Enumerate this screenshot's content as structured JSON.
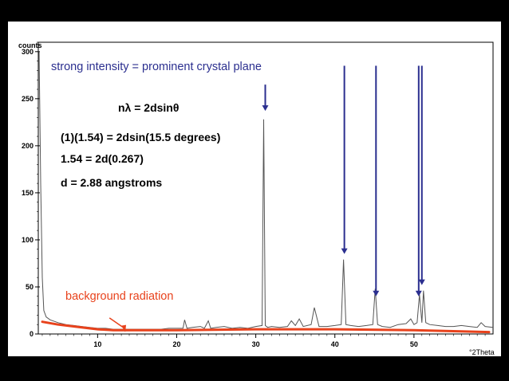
{
  "chart_data": {
    "type": "line",
    "ylabel": "counts",
    "xlabel": "°2Theta",
    "xlim": [
      2.5,
      60
    ],
    "ylim": [
      0,
      310
    ],
    "xticks": [
      10,
      20,
      30,
      40,
      50
    ],
    "yticks": [
      0,
      50,
      100,
      150,
      200,
      250,
      300
    ],
    "series": [
      {
        "x": [
          2.6,
          2.8,
          3.0,
          3.2,
          3.5,
          4,
          5,
          6,
          7,
          8,
          9,
          10,
          11,
          12,
          13,
          14,
          15,
          16,
          17,
          18,
          19,
          20,
          20.8,
          21,
          21.3,
          22,
          23,
          23.5,
          24,
          24.3,
          25,
          26,
          27,
          28,
          29,
          30,
          30.8,
          31,
          31.2,
          31.5,
          32,
          33,
          34,
          34.5,
          35,
          35.5,
          36,
          37,
          37.4,
          38,
          39,
          40,
          40.8,
          41.1,
          41.4,
          42,
          43,
          44,
          44.8,
          45.1,
          45.4,
          46,
          47,
          48,
          49,
          49.6,
          50,
          50.4,
          50.7,
          51,
          51.2,
          51.5,
          52,
          53,
          54,
          55,
          56,
          57,
          58,
          58.5,
          59,
          60
        ],
        "y": [
          300,
          160,
          60,
          25,
          18,
          15,
          12,
          10,
          9,
          8,
          7,
          6,
          6,
          5,
          5,
          5,
          5,
          5,
          5,
          5,
          6,
          6,
          6,
          15,
          6,
          7,
          8,
          6,
          14,
          6,
          7,
          8,
          6,
          7,
          6,
          8,
          9,
          228,
          9,
          7,
          8,
          7,
          8,
          14,
          9,
          16,
          8,
          10,
          28,
          8,
          8,
          9,
          10,
          79,
          10,
          9,
          8,
          9,
          10,
          48,
          10,
          8,
          7,
          10,
          11,
          16,
          10,
          12,
          42,
          12,
          46,
          12,
          10,
          9,
          8,
          8,
          9,
          8,
          7,
          12,
          8,
          7
        ]
      }
    ],
    "background": {
      "label": "background radiation",
      "x": [
        3,
        5,
        8,
        10,
        12,
        15,
        20,
        30,
        40,
        50,
        55,
        59.5
      ],
      "y": [
        13,
        10,
        7,
        5,
        4,
        4,
        4,
        5,
        5,
        4,
        3,
        2
      ]
    },
    "marker_arrows": [
      {
        "x": 31.2,
        "from_y": 265,
        "to_y": 237
      },
      {
        "x": 41.2,
        "from_y": 285,
        "to_y": 85
      },
      {
        "x": 45.2,
        "from_y": 285,
        "to_y": 40
      },
      {
        "x": 50.6,
        "from_y": 285,
        "to_y": 40
      },
      {
        "x": 51.0,
        "from_y": 285,
        "to_y": 52
      }
    ],
    "colors": {
      "trace": "#555555",
      "background": "#e8421c",
      "arrows": "#2b2f8f",
      "heading": "#2b2f8f"
    }
  },
  "annotations": {
    "heading": "strong intensity = prominent crystal plane",
    "eq1": "nλ = 2dsinθ",
    "eq2": "(1)(1.54) = 2dsin(15.5 degrees)",
    "eq3": "1.54 = 2d(0.267)",
    "eq4": "d = 2.88 angstroms",
    "background_label": "background radiation"
  }
}
